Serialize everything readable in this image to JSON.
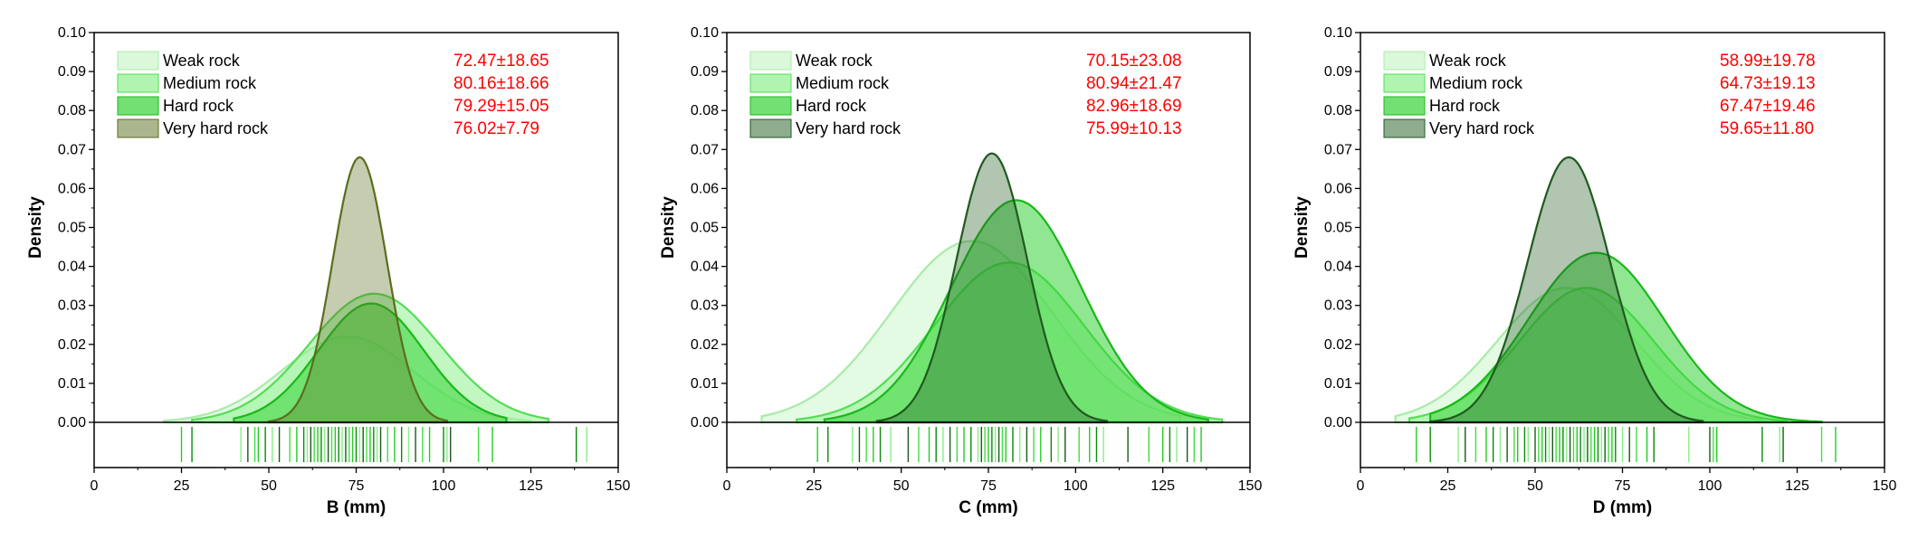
{
  "colors": {
    "weak": "#c8f5c8",
    "medium": "#8ff08f",
    "hard": "#37d337",
    "very_hard_B": "#5a6e1e",
    "very_hard_CD": "#1f5a1f",
    "stats_text": "#ff0000",
    "axis": "#000000"
  },
  "chart_data": [
    {
      "type": "area",
      "panel": "B",
      "title": "",
      "xlabel": "B (mm)",
      "ylabel": "Density",
      "xlim": [
        0,
        150
      ],
      "ylim": [
        0,
        0.1
      ],
      "x_ticks": [
        "0",
        "25",
        "50",
        "75",
        "100",
        "125",
        "150"
      ],
      "y_ticks": [
        "0.00",
        "0.01",
        "0.02",
        "0.03",
        "0.04",
        "0.05",
        "0.06",
        "0.07",
        "0.08",
        "0.09",
        "0.10"
      ],
      "legend_position": "top-left",
      "series": [
        {
          "name": "Weak rock",
          "mean": 72.47,
          "sd": 18.65,
          "peak": 0.022,
          "range": [
            20,
            125
          ],
          "stats": "72.47±18.65"
        },
        {
          "name": "Medium rock",
          "mean": 80.16,
          "sd": 18.66,
          "peak": 0.033,
          "range": [
            28,
            130
          ],
          "stats": "80.16±18.66"
        },
        {
          "name": "Hard rock",
          "mean": 79.29,
          "sd": 15.05,
          "peak": 0.0305,
          "range": [
            40,
            118
          ],
          "stats": "79.29±15.05"
        },
        {
          "name": "Very hard rock",
          "mean": 76.02,
          "sd": 7.79,
          "peak": 0.068,
          "range": [
            50,
            101
          ],
          "stats": "76.02±7.79"
        }
      ],
      "rug": [
        25,
        28,
        42,
        44,
        46,
        47,
        49,
        51,
        53,
        56,
        58,
        60,
        61,
        62,
        63,
        64,
        65,
        66,
        67,
        68,
        69,
        70,
        71,
        72,
        73,
        74,
        75,
        76,
        77,
        78,
        79,
        80,
        81,
        82,
        84,
        86,
        88,
        90,
        92,
        94,
        96,
        100,
        101,
        102,
        110,
        114,
        138,
        141
      ]
    },
    {
      "type": "area",
      "panel": "C",
      "title": "",
      "xlabel": "C (mm)",
      "ylabel": "Density",
      "xlim": [
        0,
        150
      ],
      "ylim": [
        0,
        0.1
      ],
      "x_ticks": [
        "0",
        "25",
        "50",
        "75",
        "100",
        "125",
        "150"
      ],
      "y_ticks": [
        "0.00",
        "0.01",
        "0.02",
        "0.03",
        "0.04",
        "0.05",
        "0.06",
        "0.07",
        "0.08",
        "0.09",
        "0.10"
      ],
      "legend_position": "top-left",
      "series": [
        {
          "name": "Weak rock",
          "mean": 70.15,
          "sd": 23.08,
          "peak": 0.0465,
          "range": [
            10,
            130
          ],
          "stats": "70.15±23.08"
        },
        {
          "name": "Medium rock",
          "mean": 80.94,
          "sd": 21.47,
          "peak": 0.041,
          "range": [
            20,
            142
          ],
          "stats": "80.94±21.47"
        },
        {
          "name": "Hard rock",
          "mean": 82.96,
          "sd": 18.69,
          "peak": 0.057,
          "range": [
            28,
            138
          ],
          "stats": "82.96±18.69"
        },
        {
          "name": "Very hard rock",
          "mean": 75.99,
          "sd": 10.13,
          "peak": 0.069,
          "range": [
            43,
            109
          ],
          "stats": "75.99±10.13"
        }
      ],
      "rug": [
        26,
        29,
        36,
        38,
        40,
        42,
        44,
        47,
        52,
        55,
        58,
        60,
        62,
        64,
        66,
        68,
        70,
        72,
        73,
        74,
        75,
        76,
        77,
        78,
        79,
        80,
        82,
        84,
        86,
        88,
        90,
        93,
        95,
        97,
        101,
        104,
        106,
        108,
        115,
        121,
        125,
        127,
        129,
        132,
        134,
        136
      ]
    },
    {
      "type": "area",
      "panel": "D",
      "title": "",
      "xlabel": "D (mm)",
      "ylabel": "Density",
      "xlim": [
        0,
        150
      ],
      "ylim": [
        0,
        0.1
      ],
      "x_ticks": [
        "0",
        "25",
        "50",
        "75",
        "100",
        "125",
        "150"
      ],
      "y_ticks": [
        "0.00",
        "0.01",
        "0.02",
        "0.03",
        "0.04",
        "0.05",
        "0.06",
        "0.07",
        "0.08",
        "0.09",
        "0.10"
      ],
      "legend_position": "top-left",
      "series": [
        {
          "name": "Weak rock",
          "mean": 58.99,
          "sd": 19.78,
          "peak": 0.0345,
          "range": [
            10,
            115
          ],
          "stats": "58.99±19.78"
        },
        {
          "name": "Medium rock",
          "mean": 64.73,
          "sd": 19.13,
          "peak": 0.0345,
          "range": [
            14,
            122
          ],
          "stats": "64.73±19.13"
        },
        {
          "name": "Hard rock",
          "mean": 67.47,
          "sd": 19.46,
          "peak": 0.0435,
          "range": [
            20,
            132
          ],
          "stats": "67.47±19.46"
        },
        {
          "name": "Very hard rock",
          "mean": 59.65,
          "sd": 11.8,
          "peak": 0.068,
          "range": [
            20,
            98
          ],
          "stats": "59.65±11.80"
        }
      ],
      "rug": [
        16,
        20,
        28,
        30,
        33,
        36,
        38,
        40,
        42,
        44,
        45,
        47,
        48,
        50,
        51,
        52,
        53,
        54,
        55,
        56,
        57,
        58,
        59,
        60,
        61,
        62,
        63,
        64,
        65,
        66,
        67,
        68,
        69,
        70,
        71,
        72,
        73,
        75,
        77,
        79,
        82,
        84,
        94,
        100,
        101,
        102,
        115,
        120,
        121,
        132,
        136
      ]
    }
  ]
}
